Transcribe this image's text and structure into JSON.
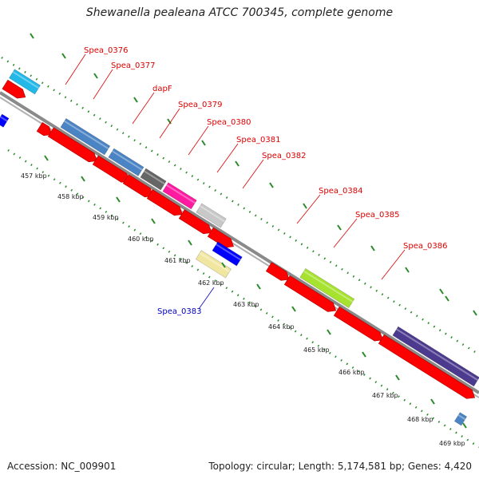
{
  "title": "Shewanella pealeana ATCC 700345, complete genome",
  "accession": "Accession: NC_009901",
  "summary": "Topology: circular; Length: 5,174,581 bp; Genes: 4,420",
  "colors": {
    "forward_label": "#dd0000",
    "reverse_label": "#0000bb",
    "red_feature": "#ff0000",
    "steelblue_feature": "#4a84c4",
    "gray_feature": "#666666",
    "magenta_feature": "#ff1aa0",
    "lightgray_feature": "#c8c8c8",
    "yellowgreen_feature": "#a6e22e",
    "purple_feature": "#4b3a8e",
    "blue_feature": "#0000ff",
    "khaki_feature": "#f1e6a0",
    "cyan_feature": "#22b8e8",
    "backbone": "#8a8a8a",
    "tick_dots": "#2a8a2a"
  },
  "ticks": [
    "457 kbp",
    "458 kbp",
    "459 kbp",
    "460 kbp",
    "461 kbp",
    "462 kbp",
    "463 kbp",
    "464 kbp",
    "465 kbp",
    "466 kbp",
    "467 kbp",
    "468 kbp",
    "469 kbp"
  ],
  "gene_labels": [
    {
      "text": "Spea_0376",
      "strand": "forward"
    },
    {
      "text": "Spea_0377",
      "strand": "forward"
    },
    {
      "text": "dapF",
      "strand": "forward"
    },
    {
      "text": "Spea_0379",
      "strand": "forward"
    },
    {
      "text": "Spea_0380",
      "strand": "forward"
    },
    {
      "text": "Spea_0381",
      "strand": "forward"
    },
    {
      "text": "Spea_0382",
      "strand": "forward"
    },
    {
      "text": "Spea_0383",
      "strand": "reverse"
    },
    {
      "text": "Spea_0384",
      "strand": "forward"
    },
    {
      "text": "Spea_0385",
      "strand": "forward"
    },
    {
      "text": "Spea_0386",
      "strand": "forward"
    }
  ]
}
